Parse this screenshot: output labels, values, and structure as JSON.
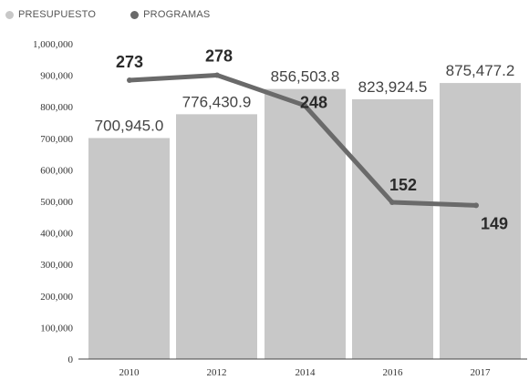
{
  "chart_data": {
    "type": "bar+line",
    "categories": [
      "2010",
      "2012",
      "2014",
      "2016",
      "2017"
    ],
    "series": [
      {
        "name": "PRESUPUESTO",
        "type": "bar",
        "values": [
          700945.0,
          776430.9,
          856503.8,
          823924.5,
          875477.2
        ],
        "labels": [
          "700,945.0",
          "776,430.9",
          "856,503.8",
          "823,924.5",
          "875,477.2"
        ],
        "color": "#c8c8c8"
      },
      {
        "name": "PROGRAMAS",
        "type": "line",
        "values": [
          273,
          278,
          248,
          152,
          149
        ],
        "labels": [
          "273",
          "278",
          "248",
          "152",
          "149"
        ],
        "color": "#6a6a6a"
      }
    ],
    "y_ticks": [
      "0",
      "100,000",
      "200,000",
      "300,000",
      "400,000",
      "500,000",
      "600,000",
      "700,000",
      "800,000",
      "900,000",
      "1,000,000"
    ],
    "ylim": [
      0,
      1000000
    ],
    "grid": false,
    "legend_position": "top-left"
  }
}
